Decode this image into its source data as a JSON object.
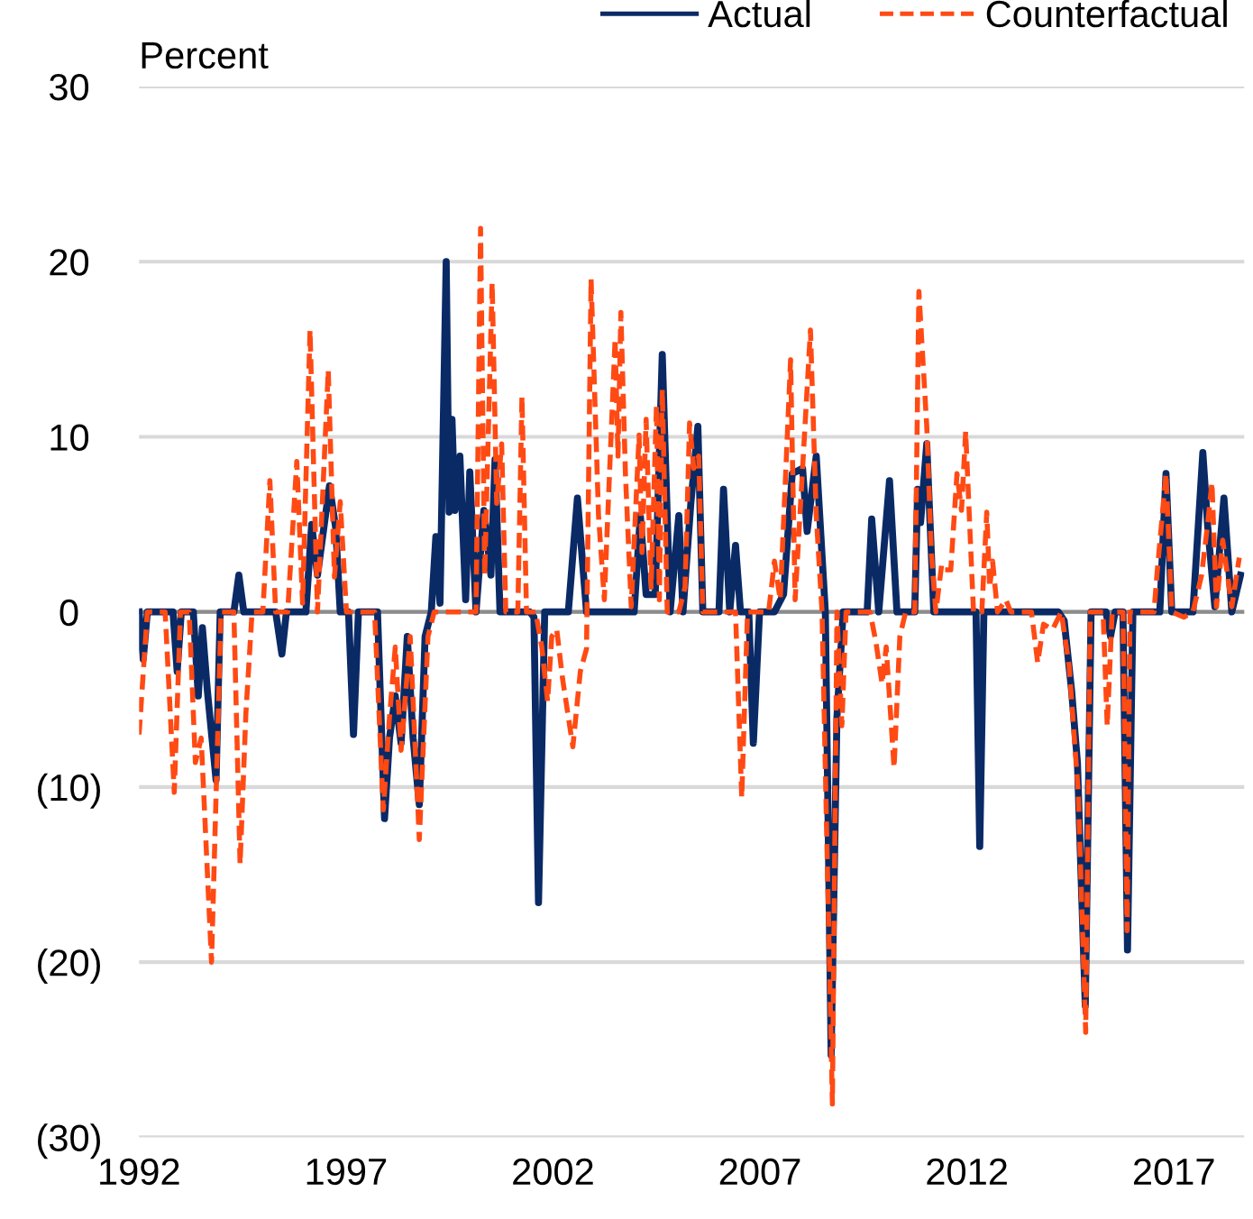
{
  "chart_data": {
    "type": "line",
    "ylabel": "Percent",
    "series": [
      {
        "name": "Actual",
        "color": "#0a2a66",
        "line_style": "solid",
        "x": [
          1992.0,
          1992.1,
          1992.2,
          1992.82,
          1992.92,
          1993.02,
          1993.31,
          1993.43,
          1993.53,
          1993.65,
          1993.86,
          1993.96,
          1994.29,
          1994.41,
          1994.53,
          1995.3,
          1995.45,
          1995.56,
          1996.03,
          1996.17,
          1996.31,
          1996.6,
          1996.75,
          1996.86,
          1997.06,
          1997.18,
          1997.3,
          1997.76,
          1997.93,
          1998.05,
          1998.19,
          1998.33,
          1998.48,
          1998.62,
          1998.77,
          1998.91,
          1999.06,
          1999.17,
          1999.27,
          1999.42,
          1999.49,
          1999.56,
          1999.63,
          1999.75,
          1999.89,
          1999.99,
          2000.14,
          2000.33,
          2000.5,
          2000.6,
          2000.72,
          2001.44,
          2001.54,
          2001.65,
          2001.8,
          2002.37,
          2002.59,
          2002.81,
          2003.96,
          2004.11,
          2004.25,
          2004.47,
          2004.64,
          2004.83,
          2005.04,
          2005.14,
          2005.33,
          2005.5,
          2005.62,
          2006.01,
          2006.12,
          2006.27,
          2006.41,
          2006.53,
          2006.73,
          2006.84,
          2006.99,
          2007.35,
          2007.57,
          2007.78,
          2008.03,
          2008.14,
          2008.36,
          2008.58,
          2008.72,
          2008.86,
          2009.01,
          2009.59,
          2009.7,
          2009.87,
          2010.13,
          2010.31,
          2010.74,
          2010.81,
          2010.88,
          2011.03,
          2011.2,
          2012.22,
          2012.31,
          2012.41,
          2014.21,
          2014.35,
          2014.53,
          2014.67,
          2014.86,
          2015.0,
          2015.36,
          2015.47,
          2015.58,
          2015.77,
          2015.88,
          2016.01,
          2016.66,
          2016.81,
          2016.95,
          2017.46,
          2017.7,
          2017.82,
          2017.99,
          2018.21,
          2018.4,
          2018.61
        ],
        "values": [
          0,
          -2.7,
          0,
          0,
          -3.4,
          0,
          0,
          -4.8,
          -0.9,
          -4.5,
          -9.6,
          0,
          0,
          2.1,
          0,
          0,
          -2.4,
          0,
          0,
          5.0,
          2.1,
          7.2,
          4.8,
          0,
          0,
          -7.0,
          0,
          0,
          -11.8,
          -7.2,
          -4.8,
          -7.5,
          -1.4,
          -7.2,
          -11.0,
          -1.4,
          0,
          4.3,
          0.5,
          20.0,
          5.7,
          11.0,
          5.8,
          8.9,
          0.7,
          8.0,
          0,
          5.8,
          2.1,
          8.7,
          0,
          0,
          -0.3,
          -16.6,
          0,
          0,
          6.5,
          0,
          0,
          5.5,
          1.0,
          1.0,
          14.7,
          0,
          5.5,
          0,
          6.2,
          10.6,
          0,
          0,
          7.0,
          0,
          3.8,
          0,
          0,
          -7.5,
          0,
          0,
          1.0,
          7.9,
          8.2,
          4.6,
          8.9,
          0,
          -25.3,
          -6.0,
          0,
          0,
          5.3,
          0,
          7.5,
          0,
          0,
          7.0,
          5.1,
          9.6,
          0,
          0,
          -13.4,
          0,
          0,
          -0.5,
          -4.5,
          -8.6,
          -22.5,
          0,
          0,
          -1.4,
          0,
          0,
          -19.3,
          0,
          0,
          7.9,
          0,
          0,
          9.1,
          4.8,
          0.3,
          6.5,
          0,
          2.1
        ]
      },
      {
        "name": "Counterfactual",
        "color": "#ff4a14",
        "line_style": "dashed",
        "x": [
          1992.0,
          1992.2,
          1992.63,
          1992.85,
          1993.0,
          1993.21,
          1993.36,
          1993.5,
          1993.75,
          1993.98,
          1994.29,
          1994.44,
          1994.58,
          1994.73,
          1994.99,
          1995.16,
          1995.3,
          1995.59,
          1995.81,
          1995.95,
          1996.13,
          1996.31,
          1996.57,
          1996.72,
          1996.86,
          1997.01,
          1997.69,
          1997.9,
          1998.05,
          1998.19,
          1998.33,
          1998.55,
          1998.77,
          1998.98,
          1999.13,
          2000.14,
          2000.25,
          2000.35,
          2000.53,
          2000.64,
          2000.76,
          2000.86,
          2001.15,
          2001.25,
          2001.36,
          2001.58,
          2001.73,
          2001.87,
          2001.97,
          2002.09,
          2002.23,
          2002.48,
          2002.66,
          2002.81,
          2002.92,
          2003.1,
          2003.24,
          2003.5,
          2003.57,
          2003.64,
          2003.75,
          2003.89,
          2004.08,
          2004.15,
          2004.25,
          2004.37,
          2004.5,
          2004.57,
          2004.64,
          2004.76,
          2005.04,
          2005.19,
          2005.3,
          2005.4,
          2005.52,
          2005.62,
          2006.41,
          2006.56,
          2006.7,
          2007.21,
          2007.35,
          2007.49,
          2007.74,
          2007.85,
          2008.22,
          2008.36,
          2008.5,
          2008.75,
          2008.86,
          2008.98,
          2009.08,
          2009.66,
          2009.8,
          2009.95,
          2010.05,
          2010.24,
          2010.38,
          2010.52,
          2010.74,
          2010.84,
          2011.03,
          2011.14,
          2011.25,
          2011.39,
          2011.47,
          2011.61,
          2011.76,
          2011.87,
          2011.97,
          2012.12,
          2012.16,
          2012.36,
          2012.48,
          2012.55,
          2012.62,
          2012.74,
          2012.94,
          2013.06,
          2013.56,
          2013.71,
          2013.85,
          2014.07,
          2014.28,
          2014.47,
          2014.69,
          2014.87,
          2014.98,
          2015.29,
          2015.39,
          2015.51,
          2015.77,
          2015.87,
          2015.94,
          2016.52,
          2016.59,
          2016.81,
          2016.95,
          2017.24,
          2017.46,
          2017.67,
          2017.82,
          2017.92,
          2018.03,
          2018.18,
          2018.4,
          2018.58
        ],
        "values": [
          -7.0,
          0,
          0,
          -10.3,
          0,
          0,
          -8.6,
          -7.2,
          -20.0,
          0,
          0,
          -14.4,
          -5.8,
          0,
          0,
          7.5,
          0,
          0,
          8.6,
          0.5,
          16.1,
          0,
          13.8,
          2,
          6.3,
          0,
          0,
          -11.3,
          -6.0,
          -2,
          -7.9,
          -1.4,
          -13.0,
          -1.4,
          0,
          0,
          21.9,
          2.1,
          18.8,
          6.2,
          9.6,
          0,
          0,
          12.3,
          0,
          0,
          -2,
          -5.1,
          -1.4,
          -1,
          -3.8,
          -7.7,
          -3.4,
          -2.1,
          19.0,
          5.5,
          0.7,
          15.6,
          8.9,
          17.1,
          7.9,
          0.3,
          10.1,
          3.4,
          11.0,
          1.4,
          11.8,
          0.7,
          12.7,
          0,
          0,
          1.4,
          10.8,
          8.2,
          8.9,
          0,
          0,
          -10.6,
          0,
          0,
          2.9,
          0.7,
          14.4,
          0.7,
          16.1,
          5.5,
          0,
          -28.1,
          0,
          -6.5,
          0,
          0,
          -1.7,
          -4.1,
          -2,
          -8.9,
          -1.4,
          0,
          0,
          18.3,
          10.6,
          3.4,
          0,
          2.7,
          2.4,
          2.4,
          7.9,
          5.8,
          10.3,
          2.1,
          0,
          0,
          5.7,
          1.4,
          2.9,
          0,
          0.7,
          0,
          0,
          -2.9,
          -0.7,
          -1.0,
          0,
          -3.1,
          -10.3,
          -24.0,
          0,
          0,
          -6.5,
          0,
          0,
          -18.2,
          0,
          0,
          2.1,
          7.9,
          0,
          -0.3,
          0,
          2.1,
          5.1,
          7.4,
          0.3,
          4.1,
          0.3,
          3.1
        ]
      }
    ],
    "xlim": [
      1992,
      2018.7
    ],
    "xticks": [
      1992,
      1997,
      2002,
      2007,
      2012,
      2017
    ],
    "ylim": [
      -30,
      30
    ],
    "yticks": [
      {
        "value": -30,
        "label": "(30)"
      },
      {
        "value": -20,
        "label": "(20)"
      },
      {
        "value": -10,
        "label": "(10)"
      },
      0,
      10,
      20,
      30
    ],
    "ref_lines": [
      {
        "axis": "y",
        "value": 0,
        "color": "#8c8c8c"
      }
    ],
    "grid": "y",
    "legend": "top right"
  }
}
